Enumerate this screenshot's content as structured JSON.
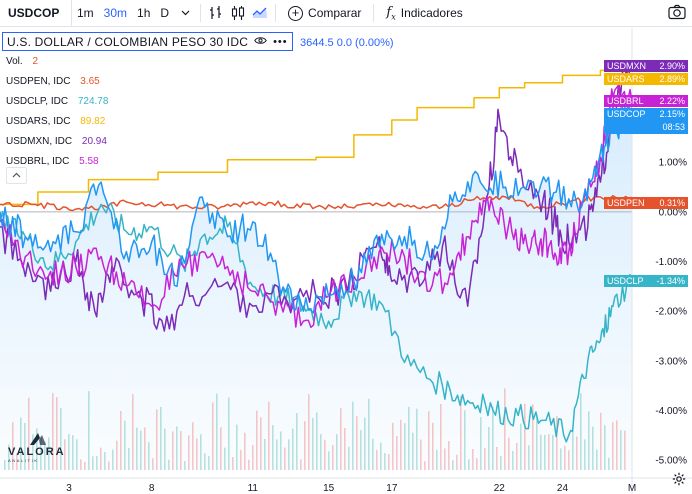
{
  "toolbar": {
    "symbol": "USDCOP",
    "intervals": [
      "1m",
      "30m",
      "1h"
    ],
    "active_interval": "30m",
    "period": "D",
    "compare_label": "Comparar",
    "indicators_label": "Indicadores",
    "icons": [
      "bar-chart-icon",
      "candle-chart-icon",
      "area-chart-icon",
      "plus-circle-icon",
      "fx-icon",
      "camera-icon"
    ]
  },
  "legend": {
    "main_title": "U.S. DOLLAR / COLOMBIAN PESO  30  IDC",
    "main_value": "3644.5  0.0 (0.00%)",
    "vol_label": "Vol.",
    "vol_value": "2",
    "rows": [
      {
        "label": "USDPEN, IDC",
        "value": "3.65",
        "color": "#e5532c"
      },
      {
        "label": "USDCLP, IDC",
        "value": "724.78",
        "color": "#36b4c8"
      },
      {
        "label": "USDARS, IDC",
        "value": "89.82",
        "color": "#f5b800"
      },
      {
        "label": "USDMXN, IDC",
        "value": "20.94",
        "color": "#7b2bb5"
      },
      {
        "label": "USDBRL, IDC",
        "value": "5.58",
        "color": "#c822d6"
      }
    ],
    "collapse_icon": "chevron-up-icon"
  },
  "logo": {
    "word": "VALORA",
    "sub": "ANALITIK"
  },
  "chart_data": {
    "type": "line",
    "x_ticks": [
      "3",
      "8",
      "11",
      "15",
      "17",
      "22",
      "24",
      "M"
    ],
    "y_ticks": [
      "1.00%",
      "0.00%",
      "-1.00%",
      "-2.00%",
      "-3.00%",
      "-4.00%",
      "-5.00%"
    ],
    "ylim": [
      -5.2,
      3.1
    ],
    "x_domain": [
      0,
      100
    ],
    "grid": false,
    "series": [
      {
        "name": "USDARS",
        "color": "#f5b800",
        "last_label": "2.89%",
        "x": [
          0,
          3,
          6,
          9,
          14,
          14,
          20,
          25,
          25,
          31,
          36,
          36,
          45,
          50,
          56,
          56,
          62,
          62,
          66,
          66,
          69,
          75,
          75,
          79,
          79,
          83,
          87,
          89,
          89,
          92,
          95,
          97,
          100
        ],
        "values": [
          0.15,
          0.15,
          0.4,
          0.4,
          0.55,
          0.65,
          0.65,
          0.75,
          0.8,
          0.8,
          0.95,
          1.05,
          1.05,
          1.1,
          1.1,
          1.55,
          1.55,
          1.85,
          1.85,
          2.1,
          2.1,
          2.1,
          2.3,
          2.3,
          2.5,
          2.6,
          2.6,
          2.6,
          2.75,
          2.75,
          2.85,
          2.85,
          2.9
        ]
      },
      {
        "name": "USDPEN",
        "color": "#e5532c",
        "last_label": "0.31%",
        "x": [
          0,
          5,
          10,
          15,
          20,
          25,
          30,
          35,
          40,
          45,
          50,
          55,
          60,
          65,
          70,
          75,
          80,
          85,
          90,
          95,
          100
        ],
        "values": [
          0.15,
          0.15,
          0.1,
          0.05,
          0.2,
          0.15,
          0.1,
          0.1,
          0.2,
          0.15,
          0.1,
          0.1,
          0.15,
          0.1,
          0.1,
          0.25,
          0.3,
          0.1,
          0.2,
          0.3,
          0.3
        ]
      },
      {
        "name": "USDCLP",
        "color": "#36b4c8",
        "last_label": "-1.34%",
        "x": [
          0,
          4,
          8,
          12,
          16,
          20,
          24,
          29,
          32,
          36,
          40,
          44,
          48,
          52,
          56,
          60,
          65,
          70,
          74,
          78,
          82,
          86,
          90,
          93,
          95,
          97,
          100
        ],
        "values": [
          -0.2,
          -0.5,
          -1.1,
          -0.6,
          0.15,
          -0.4,
          -0.3,
          -1.1,
          -0.5,
          -0.3,
          -1.5,
          -1.7,
          -1.9,
          -2.2,
          -1.6,
          -1.8,
          -3.1,
          -3.5,
          -3.8,
          -4.0,
          -4.1,
          -4.2,
          -4.5,
          -3.0,
          -2.6,
          -1.9,
          -1.34
        ]
      },
      {
        "name": "USDMXN",
        "color": "#7b2bb5",
        "last_label": "2.90%",
        "x": [
          0,
          4,
          8,
          12,
          15,
          18,
          22,
          26,
          30,
          35,
          40,
          45,
          50,
          55,
          60,
          62,
          66,
          70,
          74,
          77,
          79,
          82,
          86,
          88,
          90,
          93,
          95,
          97,
          100
        ],
        "values": [
          -0.3,
          -1.3,
          -1.6,
          -1.0,
          -2.0,
          -1.2,
          -1.6,
          -2.4,
          -1.7,
          -1.5,
          -1.9,
          -1.7,
          -1.7,
          -1.6,
          -0.5,
          -1.4,
          -1.2,
          -0.7,
          -1.9,
          0.3,
          1.9,
          0.8,
          0.3,
          -0.3,
          -0.6,
          -0.3,
          0.6,
          2.1,
          2.9
        ]
      },
      {
        "name": "USDBRL",
        "color": "#c822d6",
        "last_label": "2.22%",
        "x": [
          0,
          4,
          8,
          12,
          16,
          20,
          24,
          28,
          32,
          36,
          40,
          44,
          48,
          52,
          56,
          60,
          64,
          68,
          72,
          75,
          78,
          81,
          84,
          86,
          88,
          90,
          92,
          95,
          97,
          100
        ],
        "values": [
          -0.2,
          -0.9,
          -1.2,
          -1.1,
          -0.9,
          -1.5,
          -1.9,
          -1.3,
          -0.8,
          -1.1,
          -1.6,
          -1.8,
          -2.2,
          -1.7,
          -1.3,
          -0.8,
          -0.9,
          -1.6,
          -1.1,
          -0.2,
          0.1,
          -0.4,
          -0.7,
          -0.6,
          -0.9,
          -0.8,
          0.1,
          1.1,
          2.3,
          2.2
        ]
      },
      {
        "name": "USDCOP",
        "color": "#2196f3",
        "last_label": "2.15%",
        "last_sublabel": "08:53",
        "x": [
          0,
          4,
          8,
          12,
          16,
          20,
          24,
          28,
          32,
          36,
          40,
          44,
          48,
          52,
          56,
          60,
          64,
          68,
          72,
          76,
          80,
          84,
          88,
          92,
          95,
          97,
          100
        ],
        "values": [
          0.0,
          -0.5,
          -0.8,
          -0.4,
          0.6,
          -0.8,
          -0.6,
          -1.5,
          0.3,
          -0.5,
          -0.2,
          -1.3,
          -2.0,
          -1.7,
          -1.4,
          -0.7,
          -0.5,
          -0.9,
          0.4,
          0.6,
          0.5,
          0.6,
          0.4,
          0.1,
          1.2,
          1.6,
          2.15
        ]
      }
    ]
  }
}
